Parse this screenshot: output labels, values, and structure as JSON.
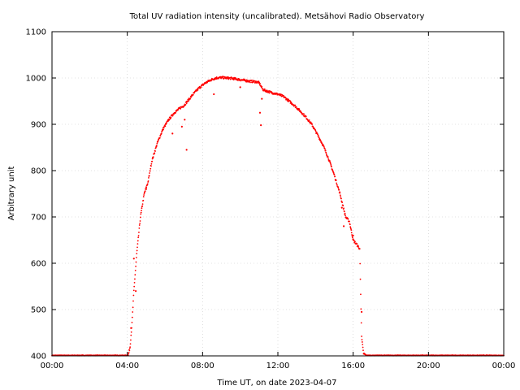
{
  "chart_data": {
    "type": "scatter",
    "title": "Total UV radiation intensity (uncalibrated). Metsähovi Radio Observatory",
    "xlabel": "Time UT, on date 2023-04-07",
    "ylabel": "Arbitrary unit",
    "xlim": [
      0,
      24
    ],
    "ylim": [
      400,
      1100
    ],
    "x_ticks": [
      {
        "value": 0,
        "label": "00:00"
      },
      {
        "value": 4,
        "label": "04:00"
      },
      {
        "value": 8,
        "label": "08:00"
      },
      {
        "value": 12,
        "label": "12:00"
      },
      {
        "value": 16,
        "label": "16:00"
      },
      {
        "value": 20,
        "label": "20:00"
      },
      {
        "value": 24,
        "label": "00:00"
      }
    ],
    "y_ticks": [
      400,
      500,
      600,
      700,
      800,
      900,
      1000,
      1100
    ],
    "grid": true,
    "series_color": "#ff0000",
    "curve_x": [
      0,
      4.05,
      4.15,
      4.25,
      4.35,
      4.5,
      4.7,
      4.9,
      5.1,
      5.3,
      5.6,
      5.9,
      6.2,
      6.5,
      6.8,
      7.0,
      7.2,
      7.5,
      7.8,
      8.1,
      8.4,
      8.7,
      9.0,
      9.3,
      9.6,
      9.9,
      10.2,
      10.5,
      10.8,
      11.0,
      11.2,
      11.4,
      11.7,
      12.0,
      12.3,
      12.6,
      12.9,
      13.2,
      13.5,
      13.8,
      14.1,
      14.4,
      14.7,
      15.0,
      15.3,
      15.6,
      15.8,
      16.0,
      16.2,
      16.35,
      16.45,
      16.55,
      16.7,
      24
    ],
    "curve_y": [
      401,
      401,
      420,
      470,
      540,
      620,
      700,
      750,
      775,
      820,
      860,
      890,
      910,
      925,
      935,
      940,
      950,
      965,
      978,
      988,
      995,
      1000,
      1001,
      1000,
      999,
      997,
      995,
      993,
      992,
      990,
      975,
      972,
      968,
      965,
      960,
      950,
      940,
      928,
      915,
      900,
      878,
      855,
      825,
      790,
      750,
      700,
      690,
      650,
      640,
      630,
      440,
      405,
      401,
      401
    ],
    "outliers": [
      {
        "x": 4.2,
        "y": 460
      },
      {
        "x": 4.35,
        "y": 610
      },
      {
        "x": 4.45,
        "y": 540
      },
      {
        "x": 5.0,
        "y": 760
      },
      {
        "x": 6.4,
        "y": 880
      },
      {
        "x": 6.9,
        "y": 895
      },
      {
        "x": 7.05,
        "y": 910
      },
      {
        "x": 7.15,
        "y": 845
      },
      {
        "x": 8.6,
        "y": 965
      },
      {
        "x": 10.0,
        "y": 980
      },
      {
        "x": 11.05,
        "y": 925
      },
      {
        "x": 11.1,
        "y": 898
      },
      {
        "x": 11.15,
        "y": 955
      },
      {
        "x": 15.4,
        "y": 720
      },
      {
        "x": 15.5,
        "y": 680
      },
      {
        "x": 16.0,
        "y": 660
      },
      {
        "x": 16.45,
        "y": 495
      }
    ]
  }
}
